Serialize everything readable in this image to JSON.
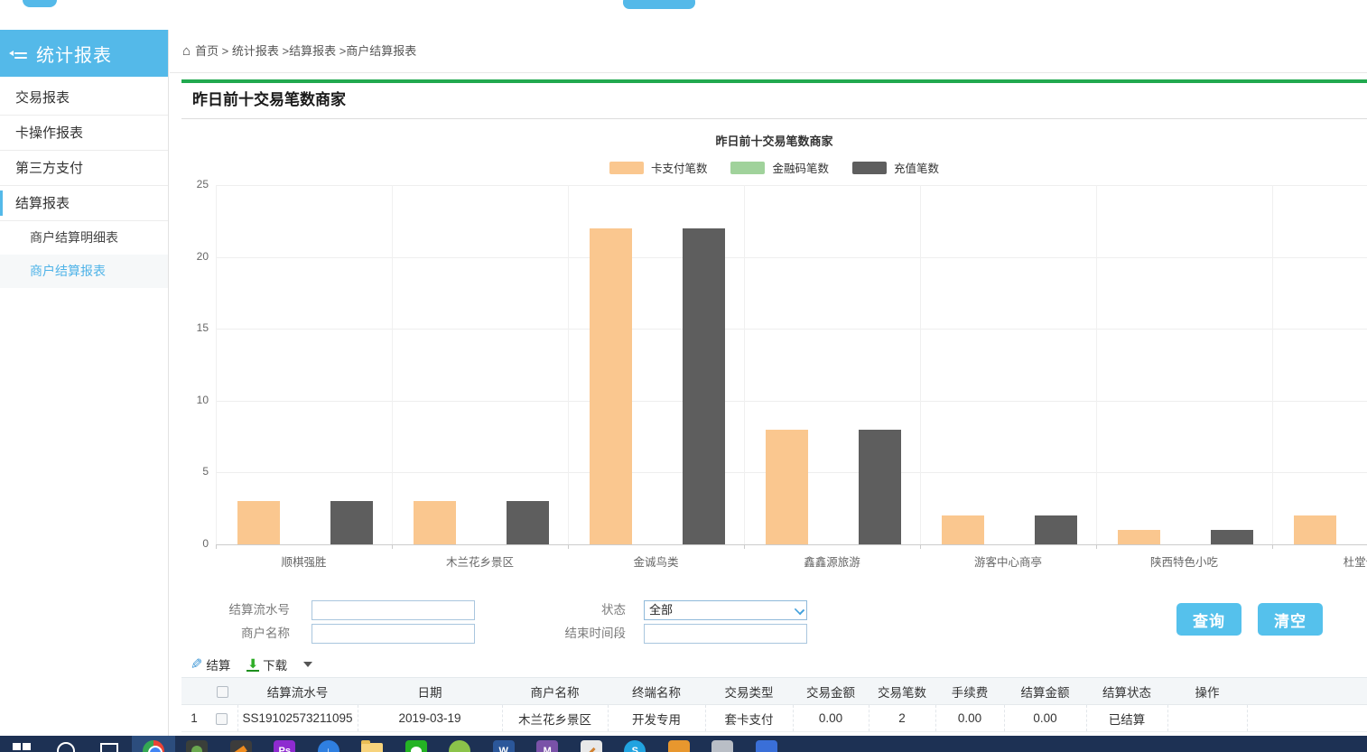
{
  "sidebar": {
    "title": "统计报表",
    "items": [
      {
        "label": "交易报表"
      },
      {
        "label": "卡操作报表"
      },
      {
        "label": "第三方支付"
      },
      {
        "label": "结算报表"
      }
    ],
    "sub_items": [
      {
        "label": "商户结算明细表"
      },
      {
        "label": "商户结算报表"
      }
    ]
  },
  "breadcrumb": {
    "full": "首页 > 统计报表 >结算报表 >商户结算报表"
  },
  "page": {
    "section_title": "昨日前十交易笔数商家"
  },
  "chart_data": {
    "type": "bar",
    "title": "昨日前十交易笔数商家",
    "categories": [
      "顺棋强胜",
      "木兰花乡景区",
      "金诚鸟类",
      "鑫鑫源旅游",
      "游客中心商亭",
      "陕西特色小吃",
      "杜堂便"
    ],
    "series": [
      {
        "name": "卡支付笔数",
        "color": "#fac78f",
        "values": [
          3,
          3,
          22,
          8,
          2,
          1,
          2
        ]
      },
      {
        "name": "金融码笔数",
        "color": "#a0d29b",
        "values": [
          0,
          0,
          0,
          0,
          0,
          0,
          0
        ]
      },
      {
        "name": "充值笔数",
        "color": "#5e5e5e",
        "values": [
          3,
          3,
          22,
          8,
          2,
          1,
          2
        ]
      }
    ],
    "ylim": [
      0,
      25
    ],
    "yticks": [
      0,
      5,
      10,
      15,
      20,
      25
    ],
    "legend_position": "top",
    "grid": true
  },
  "filters": {
    "serial_label": "结算流水号",
    "serial_value": "",
    "merchant_label": "商户名称",
    "merchant_value": "",
    "status_label": "状态",
    "status_value": "全部",
    "endtime_label": "结束时间段",
    "endtime_value": "",
    "query_button": "查询",
    "clear_button": "清空"
  },
  "toolbar": {
    "settle": "结算",
    "download": "下载"
  },
  "table": {
    "columns": [
      "结算流水号",
      "日期",
      "商户名称",
      "终端名称",
      "交易类型",
      "交易金额",
      "交易笔数",
      "手续费",
      "结算金额",
      "结算状态",
      "操作"
    ],
    "rows": [
      {
        "seq": "1",
        "cells": [
          "SS19102573211095",
          "2019-03-19",
          "木兰花乡景区",
          "开发专用",
          "套卡支付",
          "0.00",
          "2",
          "0.00",
          "0.00",
          "已结算",
          ""
        ]
      }
    ]
  },
  "taskbar": {
    "icons": [
      {
        "kind": "windows-start"
      },
      {
        "kind": "cortana-search"
      },
      {
        "kind": "task-view"
      },
      {
        "kind": "chrome",
        "active": true
      },
      {
        "kind": "app-dark-green"
      },
      {
        "kind": "app-dark-orange"
      },
      {
        "kind": "photoshop",
        "text": "Ps"
      },
      {
        "kind": "download-circle",
        "text": "↓"
      },
      {
        "kind": "file-explorer"
      },
      {
        "kind": "wechat"
      },
      {
        "kind": "green-robot"
      },
      {
        "kind": "word",
        "text": "W"
      },
      {
        "kind": "purple-chart",
        "text": "M"
      },
      {
        "kind": "notepad"
      },
      {
        "kind": "skype",
        "text": "S"
      },
      {
        "kind": "orange-book"
      },
      {
        "kind": "gray-doc"
      },
      {
        "kind": "blue-doc"
      }
    ]
  }
}
